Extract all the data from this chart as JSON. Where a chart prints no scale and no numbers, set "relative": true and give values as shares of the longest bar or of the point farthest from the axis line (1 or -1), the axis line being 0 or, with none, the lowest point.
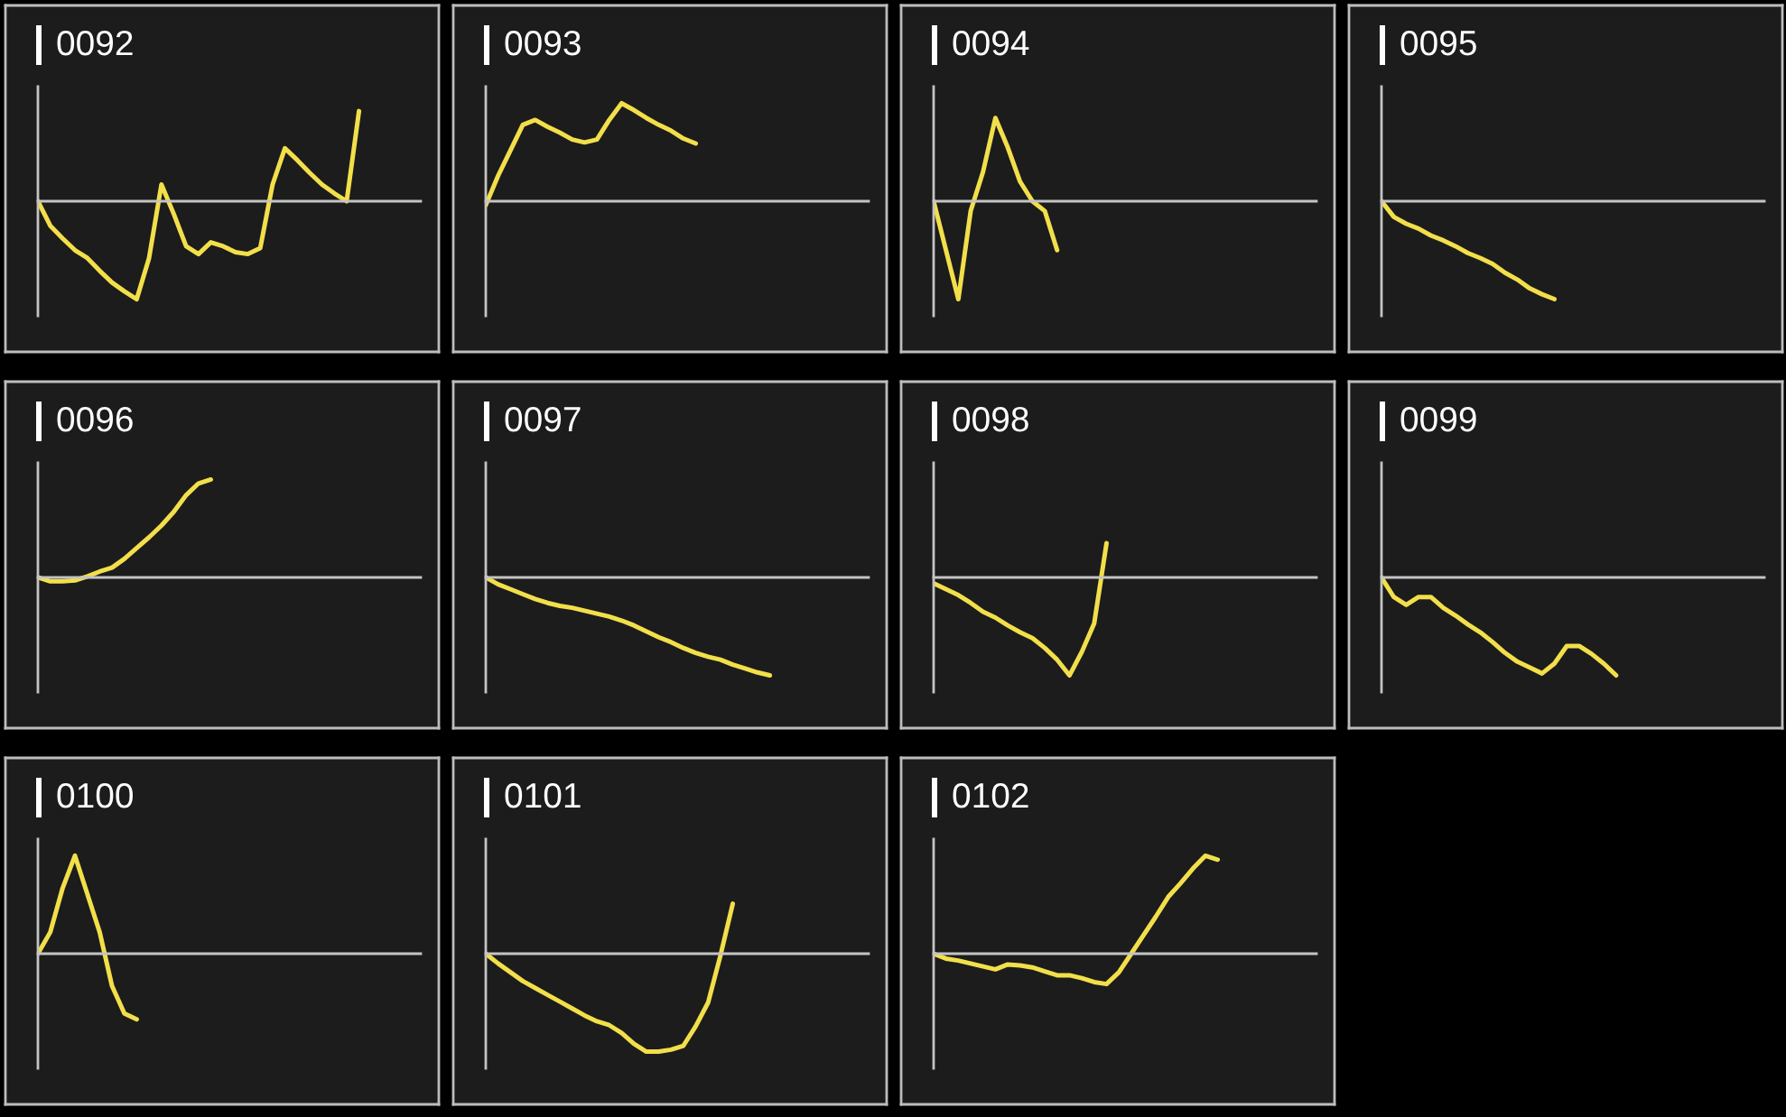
{
  "chart_data": [
    {
      "type": "line",
      "title": "0092",
      "relative": true,
      "categories": [
        null,
        null,
        null,
        null,
        null,
        null,
        null,
        null,
        null,
        null,
        null,
        null,
        null,
        null,
        null,
        null,
        null,
        null,
        null,
        null,
        null,
        null,
        null,
        null,
        null,
        null,
        null,
        null,
        null,
        null,
        null,
        null
      ],
      "series": [
        {
          "color": "#f2df4a",
          "values": [
            0,
            -0.25,
            -0.38,
            -0.5,
            -0.58,
            -0.71,
            -0.83,
            -0.92,
            -1,
            -0.58,
            0.17,
            -0.13,
            -0.46,
            -0.54,
            -0.42,
            -0.46,
            -0.52,
            -0.54,
            -0.48,
            0.17,
            0.54,
            0.42,
            0.29,
            0.17,
            0.08,
            0,
            0.92,
            null,
            null,
            null,
            null,
            null
          ]
        }
      ]
    },
    {
      "type": "line",
      "title": "0093",
      "relative": true,
      "categories": [
        null,
        null,
        null,
        null,
        null,
        null,
        null,
        null,
        null,
        null,
        null,
        null,
        null,
        null,
        null,
        null,
        null,
        null,
        null,
        null,
        null,
        null,
        null,
        null,
        null,
        null,
        null,
        null,
        null,
        null,
        null,
        null
      ],
      "series": [
        {
          "color": "#f2df4a",
          "values": [
            -0.04,
            0.26,
            0.52,
            0.78,
            0.83,
            0.76,
            0.7,
            0.63,
            0.6,
            0.63,
            0.83,
            1,
            0.93,
            0.85,
            0.78,
            0.72,
            0.64,
            0.59,
            null,
            null,
            null,
            null,
            null,
            null,
            null,
            null,
            null,
            null,
            null,
            null,
            null,
            null
          ]
        }
      ]
    },
    {
      "type": "line",
      "title": "0094",
      "relative": true,
      "categories": [
        null,
        null,
        null,
        null,
        null,
        null,
        null,
        null,
        null,
        null,
        null,
        null,
        null,
        null,
        null,
        null,
        null,
        null,
        null,
        null,
        null,
        null,
        null,
        null,
        null,
        null,
        null,
        null,
        null,
        null,
        null,
        null
      ],
      "series": [
        {
          "color": "#f2df4a",
          "values": [
            0,
            -0.5,
            -1,
            -0.1,
            0.3,
            0.85,
            0.55,
            0.2,
            0,
            -0.1,
            -0.5,
            null,
            null,
            null,
            null,
            null,
            null,
            null,
            null,
            null,
            null,
            null,
            null,
            null,
            null,
            null,
            null,
            null,
            null,
            null,
            null,
            null
          ]
        }
      ]
    },
    {
      "type": "line",
      "title": "0095",
      "relative": true,
      "categories": [
        null,
        null,
        null,
        null,
        null,
        null,
        null,
        null,
        null,
        null,
        null,
        null,
        null,
        null,
        null,
        null,
        null,
        null,
        null,
        null,
        null,
        null,
        null,
        null,
        null,
        null,
        null,
        null,
        null,
        null,
        null,
        null
      ],
      "series": [
        {
          "color": "#f2df4a",
          "values": [
            0,
            -0.16,
            -0.23,
            -0.28,
            -0.35,
            -0.4,
            -0.46,
            -0.53,
            -0.58,
            -0.64,
            -0.73,
            -0.8,
            -0.89,
            -0.95,
            -1,
            null,
            null,
            null,
            null,
            null,
            null,
            null,
            null,
            null,
            null,
            null,
            null,
            null,
            null,
            null,
            null,
            null
          ]
        }
      ]
    },
    {
      "type": "line",
      "title": "0096",
      "relative": true,
      "categories": [
        null,
        null,
        null,
        null,
        null,
        null,
        null,
        null,
        null,
        null,
        null,
        null,
        null,
        null,
        null,
        null,
        null,
        null,
        null,
        null,
        null,
        null,
        null,
        null,
        null,
        null,
        null,
        null,
        null,
        null,
        null,
        null
      ],
      "series": [
        {
          "color": "#f2df4a",
          "values": [
            0,
            -0.04,
            -0.04,
            -0.03,
            0.01,
            0.06,
            0.1,
            0.19,
            0.3,
            0.41,
            0.53,
            0.67,
            0.84,
            0.96,
            1,
            null,
            null,
            null,
            null,
            null,
            null,
            null,
            null,
            null,
            null,
            null,
            null,
            null,
            null,
            null,
            null,
            null
          ]
        }
      ]
    },
    {
      "type": "line",
      "title": "0097",
      "relative": true,
      "categories": [
        null,
        null,
        null,
        null,
        null,
        null,
        null,
        null,
        null,
        null,
        null,
        null,
        null,
        null,
        null,
        null,
        null,
        null,
        null,
        null,
        null,
        null,
        null,
        null,
        null,
        null,
        null,
        null,
        null,
        null,
        null,
        null
      ],
      "series": [
        {
          "color": "#f2df4a",
          "values": [
            0,
            -0.07,
            -0.12,
            -0.17,
            -0.22,
            -0.26,
            -0.29,
            -0.31,
            -0.34,
            -0.37,
            -0.4,
            -0.44,
            -0.49,
            -0.55,
            -0.61,
            -0.66,
            -0.72,
            -0.77,
            -0.81,
            -0.84,
            -0.89,
            -0.93,
            -0.97,
            -1,
            null,
            null,
            null,
            null,
            null,
            null,
            null,
            null
          ]
        }
      ]
    },
    {
      "type": "line",
      "title": "0098",
      "relative": true,
      "categories": [
        null,
        null,
        null,
        null,
        null,
        null,
        null,
        null,
        null,
        null,
        null,
        null,
        null,
        null,
        null,
        null,
        null,
        null,
        null,
        null,
        null,
        null,
        null,
        null,
        null,
        null,
        null,
        null,
        null,
        null,
        null,
        null
      ],
      "series": [
        {
          "color": "#f2df4a",
          "values": [
            -0.06,
            -0.12,
            -0.18,
            -0.26,
            -0.35,
            -0.41,
            -0.49,
            -0.56,
            -0.62,
            -0.72,
            -0.84,
            -1,
            -0.76,
            -0.47,
            0.35,
            null,
            null,
            null,
            null,
            null,
            null,
            null,
            null,
            null,
            null,
            null,
            null,
            null,
            null,
            null,
            null,
            null
          ]
        }
      ]
    },
    {
      "type": "line",
      "title": "0099",
      "relative": true,
      "categories": [
        null,
        null,
        null,
        null,
        null,
        null,
        null,
        null,
        null,
        null,
        null,
        null,
        null,
        null,
        null,
        null,
        null,
        null,
        null,
        null,
        null,
        null,
        null,
        null,
        null,
        null,
        null,
        null,
        null,
        null,
        null,
        null
      ],
      "series": [
        {
          "color": "#f2df4a",
          "values": [
            0,
            -0.2,
            -0.28,
            -0.2,
            -0.2,
            -0.31,
            -0.39,
            -0.48,
            -0.56,
            -0.66,
            -0.77,
            -0.86,
            -0.92,
            -0.98,
            -0.88,
            -0.7,
            -0.7,
            -0.78,
            -0.88,
            -1,
            null,
            null,
            null,
            null,
            null,
            null,
            null,
            null,
            null,
            null,
            null,
            null
          ]
        }
      ]
    },
    {
      "type": "line",
      "title": "0100",
      "relative": true,
      "categories": [
        null,
        null,
        null,
        null,
        null,
        null,
        null,
        null,
        null,
        null,
        null,
        null,
        null,
        null,
        null,
        null,
        null,
        null,
        null,
        null,
        null,
        null,
        null,
        null,
        null,
        null,
        null,
        null,
        null,
        null,
        null,
        null
      ],
      "series": [
        {
          "color": "#f2df4a",
          "values": [
            0,
            0.22,
            0.67,
            1,
            0.61,
            0.22,
            -0.33,
            -0.61,
            -0.67,
            null,
            null,
            null,
            null,
            null,
            null,
            null,
            null,
            null,
            null,
            null,
            null,
            null,
            null,
            null,
            null,
            null,
            null,
            null,
            null,
            null,
            null,
            null
          ]
        }
      ]
    },
    {
      "type": "line",
      "title": "0101",
      "relative": true,
      "categories": [
        null,
        null,
        null,
        null,
        null,
        null,
        null,
        null,
        null,
        null,
        null,
        null,
        null,
        null,
        null,
        null,
        null,
        null,
        null,
        null,
        null,
        null,
        null,
        null,
        null,
        null,
        null,
        null,
        null,
        null,
        null,
        null
      ],
      "series": [
        {
          "color": "#f2df4a",
          "values": [
            0,
            -0.1,
            -0.19,
            -0.28,
            -0.35,
            -0.42,
            -0.49,
            -0.56,
            -0.63,
            -0.69,
            -0.73,
            -0.81,
            -0.92,
            -1,
            -1,
            -0.98,
            -0.94,
            -0.74,
            -0.5,
            -0.02,
            0.51,
            null,
            null,
            null,
            null,
            null,
            null,
            null,
            null,
            null,
            null,
            null
          ]
        }
      ]
    },
    {
      "type": "line",
      "title": "0102",
      "relative": true,
      "categories": [
        null,
        null,
        null,
        null,
        null,
        null,
        null,
        null,
        null,
        null,
        null,
        null,
        null,
        null,
        null,
        null,
        null,
        null,
        null,
        null,
        null,
        null,
        null,
        null,
        null,
        null,
        null,
        null,
        null,
        null,
        null,
        null
      ],
      "series": [
        {
          "color": "#f2df4a",
          "values": [
            0,
            -0.05,
            -0.07,
            -0.1,
            -0.13,
            -0.16,
            -0.11,
            -0.12,
            -0.14,
            -0.18,
            -0.22,
            -0.22,
            -0.25,
            -0.29,
            -0.31,
            -0.19,
            0,
            0.19,
            0.38,
            0.58,
            0.72,
            0.87,
            1,
            0.96,
            null,
            null,
            null,
            null,
            null,
            null,
            null,
            null
          ]
        }
      ]
    }
  ]
}
